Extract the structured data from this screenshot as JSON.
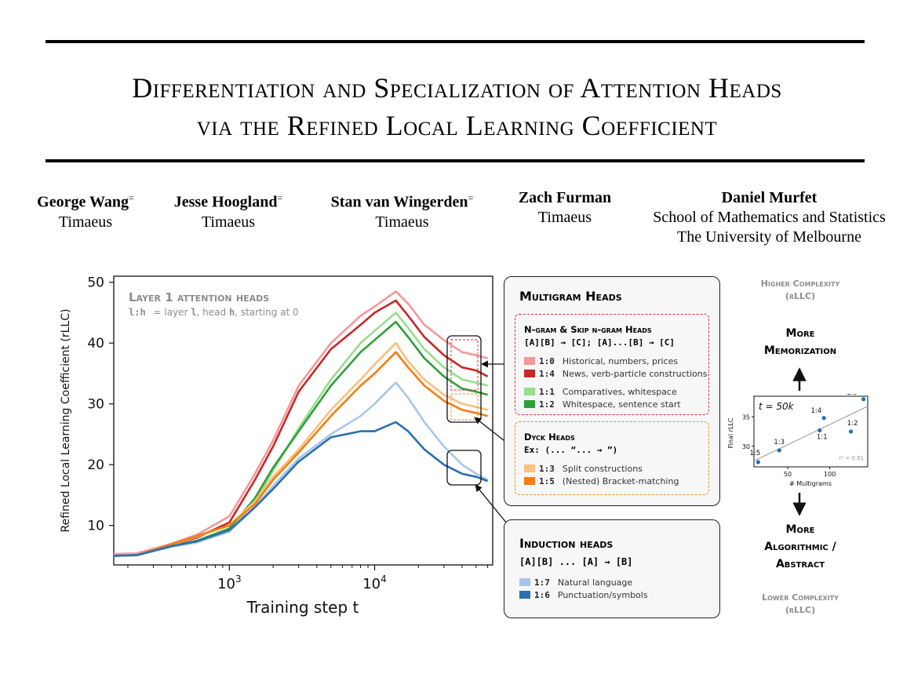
{
  "title": {
    "line1": "Differentiation and Specialization of Attention Heads",
    "line2": "via the Refined Local Learning Coefficient"
  },
  "authors": [
    {
      "name": "George Wang",
      "mark": "=",
      "affiliation": "Timaeus"
    },
    {
      "name": "Jesse Hoogland",
      "mark": "=",
      "affiliation": "Timaeus"
    },
    {
      "name": "Stan van Wingerden",
      "mark": "=",
      "affiliation": "Timaeus"
    },
    {
      "name": "Zach Furman",
      "mark": "",
      "affiliation": "Timaeus"
    },
    {
      "name": "Daniel Murfet",
      "mark": "",
      "affiliation": "School of Mathematics and Statistics",
      "affiliation2": "The University of Melbourne"
    }
  ],
  "chart_data": [
    {
      "type": "line",
      "annotation_title": "Layer 1 attention heads",
      "annotation_key": "l:h",
      "annotation_desc1": "= layer ",
      "annotation_l": "l",
      "annotation_desc2": ", head ",
      "annotation_h": "h",
      "annotation_desc3": ", starting at 0",
      "xlabel": "Training step t",
      "ylabel": "Refined Local Learning Coefficient (rLLC)",
      "xscale": "log",
      "xlim": [
        160,
        65000
      ],
      "ylim": [
        3.5,
        51
      ],
      "yticks": [
        10,
        20,
        30,
        40,
        50
      ],
      "xticks": [
        "10^3",
        "10^4"
      ],
      "series": [
        {
          "name": "1:0",
          "color": "#f4989a",
          "x": [
            160,
            230,
            400,
            600,
            1000,
            1500,
            2000,
            3000,
            5000,
            8000,
            10000,
            14000,
            17000,
            22000,
            30000,
            40000,
            50000,
            60000
          ],
          "y": [
            5.3,
            5.4,
            7.0,
            8.5,
            11.5,
            18.5,
            24.0,
            33.0,
            40.0,
            44.5,
            46.0,
            48.5,
            46.5,
            43.0,
            40.5,
            38.5,
            38.0,
            37.5
          ]
        },
        {
          "name": "1:4",
          "color": "#c62828",
          "x": [
            160,
            230,
            400,
            600,
            1000,
            1500,
            2000,
            3000,
            5000,
            8000,
            10000,
            14000,
            17000,
            22000,
            30000,
            40000,
            50000,
            60000
          ],
          "y": [
            5.0,
            5.1,
            6.8,
            8.0,
            10.5,
            17.5,
            23.0,
            32.0,
            39.0,
            43.0,
            45.0,
            47.0,
            44.5,
            41.0,
            38.0,
            36.0,
            35.5,
            34.5
          ]
        },
        {
          "name": "1:1",
          "color": "#98dd8a",
          "x": [
            160,
            230,
            400,
            600,
            1000,
            1500,
            2000,
            3000,
            5000,
            8000,
            10000,
            14000,
            17000,
            22000,
            30000,
            40000,
            50000,
            60000
          ],
          "y": [
            5.0,
            5.1,
            6.5,
            7.2,
            9.0,
            14.0,
            19.0,
            26.0,
            34.0,
            40.0,
            42.0,
            45.0,
            42.5,
            39.0,
            36.0,
            34.0,
            33.5,
            33.0
          ]
        },
        {
          "name": "1:2",
          "color": "#2e9e3a",
          "x": [
            160,
            230,
            400,
            600,
            1000,
            1500,
            2000,
            3000,
            5000,
            8000,
            10000,
            14000,
            17000,
            22000,
            30000,
            40000,
            50000,
            60000
          ],
          "y": [
            5.0,
            5.1,
            6.6,
            7.5,
            9.5,
            14.5,
            19.5,
            25.5,
            33.0,
            38.5,
            40.5,
            43.5,
            41.0,
            37.5,
            34.5,
            32.5,
            32.0,
            31.5
          ]
        },
        {
          "name": "1:3",
          "color": "#fbbf80",
          "x": [
            160,
            230,
            400,
            600,
            1000,
            1500,
            2000,
            3000,
            5000,
            8000,
            10000,
            14000,
            17000,
            22000,
            30000,
            40000,
            50000,
            60000
          ],
          "y": [
            5.0,
            5.1,
            6.8,
            8.2,
            10.0,
            14.0,
            18.0,
            22.5,
            29.0,
            34.0,
            36.5,
            40.0,
            37.0,
            34.0,
            31.5,
            30.0,
            29.5,
            29.0
          ]
        },
        {
          "name": "1:5",
          "color": "#f07f10",
          "x": [
            160,
            230,
            400,
            600,
            1000,
            1500,
            2000,
            3000,
            5000,
            8000,
            10000,
            14000,
            17000,
            22000,
            30000,
            40000,
            50000,
            60000
          ],
          "y": [
            5.0,
            5.1,
            6.9,
            8.3,
            10.0,
            13.5,
            17.5,
            22.0,
            28.0,
            33.0,
            35.0,
            38.5,
            36.0,
            33.0,
            30.5,
            29.0,
            28.5,
            28.0
          ]
        },
        {
          "name": "1:7",
          "color": "#a9c6e8",
          "x": [
            160,
            230,
            400,
            600,
            1000,
            1500,
            2000,
            3000,
            5000,
            8000,
            10000,
            14000,
            17000,
            22000,
            30000,
            40000,
            50000,
            60000
          ],
          "y": [
            5.0,
            5.1,
            6.5,
            7.3,
            9.0,
            13.0,
            16.5,
            21.0,
            25.0,
            28.0,
            30.0,
            33.5,
            31.0,
            27.0,
            23.0,
            20.0,
            18.5,
            17.5
          ]
        },
        {
          "name": "1:6",
          "color": "#2a6fb0",
          "x": [
            160,
            230,
            400,
            600,
            1000,
            1500,
            2000,
            3000,
            5000,
            8000,
            10000,
            14000,
            17000,
            22000,
            30000,
            40000,
            50000,
            60000
          ],
          "y": [
            5.0,
            5.1,
            6.6,
            7.4,
            9.2,
            13.0,
            16.0,
            20.5,
            24.5,
            25.5,
            25.5,
            27.0,
            25.5,
            22.5,
            20.0,
            18.5,
            18.0,
            17.3
          ]
        }
      ]
    },
    {
      "type": "scatter",
      "annotation": "t = 50k",
      "xlabel": "# Multigrams",
      "ylabel": "Final rLLC",
      "xticks": [
        50,
        100
      ],
      "yticks": [
        30,
        35
      ],
      "xlim": [
        10,
        145
      ],
      "ylim": [
        26.5,
        38.5
      ],
      "r2": "r² = 0.81",
      "points": [
        {
          "label": "1:0",
          "x": 140,
          "y": 38.0
        },
        {
          "label": "1:4",
          "x": 93,
          "y": 34.8
        },
        {
          "label": "1:1",
          "x": 88,
          "y": 32.7
        },
        {
          "label": "1:2",
          "x": 125,
          "y": 32.5
        },
        {
          "label": "1:3",
          "x": 40,
          "y": 29.3
        },
        {
          "label": "1:5",
          "x": 15,
          "y": 27.3
        }
      ],
      "trend": {
        "x": [
          10,
          145
        ],
        "y": [
          27.5,
          36.8
        ]
      }
    }
  ],
  "multigram_box": {
    "title": "Multigram Heads",
    "ngram_title": "N-gram & Skip n-gram Heads",
    "ngram_rule": "[A][B] → [C]; [A]...[B] → [C]",
    "ngram_items": [
      {
        "key": "1:0",
        "desc": "Historical, numbers, prices",
        "color": "#f4989a"
      },
      {
        "key": "1:4",
        "desc": "News, verb-particle constructions",
        "color": "#c62828"
      },
      {
        "key": "1:1",
        "desc": "Comparatives, whitespace",
        "color": "#98dd8a"
      },
      {
        "key": "1:2",
        "desc": "Whitespace, sentence start",
        "color": "#2e9e3a"
      }
    ],
    "dyck_title": "Dyck Heads",
    "dyck_rule": "Ex: (... “... → ”)",
    "dyck_items": [
      {
        "key": "1:3",
        "desc": "Split constructions",
        "color": "#fbbf80"
      },
      {
        "key": "1:5",
        "desc": "(Nested) Bracket-matching",
        "color": "#f07f10"
      }
    ]
  },
  "induction_box": {
    "title": "Induction heads",
    "rule": "[A][B] ... [A] → [B]",
    "items": [
      {
        "key": "1:7",
        "desc": "Natural language",
        "color": "#a9c6e8"
      },
      {
        "key": "1:6",
        "desc": "Punctuation/symbols",
        "color": "#2a6fb0"
      }
    ]
  },
  "side": {
    "higher": "Higher Complexity",
    "higher_unit": "(rLLC)",
    "more_mem1": "More",
    "more_mem2": "Memorization",
    "more_alg1": "More",
    "more_alg2": "Algorithmic /",
    "more_alg3": "Abstract",
    "lower": "Lower Complexity",
    "lower_unit": "(rLLC)"
  }
}
